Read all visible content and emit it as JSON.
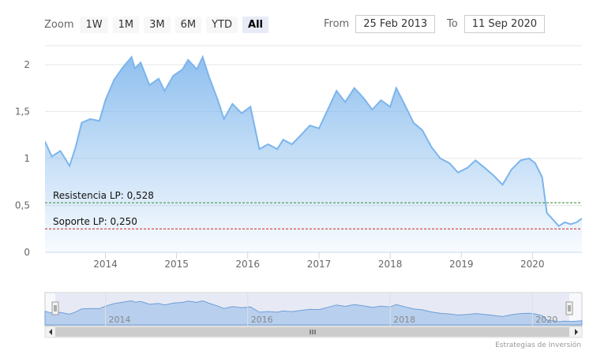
{
  "toolbar": {
    "zoom_label": "Zoom",
    "zoom_buttons": [
      "1W",
      "1M",
      "3M",
      "6M",
      "YTD",
      "All"
    ],
    "active_zoom": "All",
    "from_label": "From",
    "from_value": "25 Feb 2013",
    "to_label": "To",
    "to_value": "11 Sep 2020"
  },
  "credit": "Estrategias de Inversión",
  "colors": {
    "line": "#7cb5ec",
    "resistance": "#2e8b2e",
    "support": "#cc2222",
    "navigator_bg": "#e1e6f2"
  },
  "chart_data": {
    "type": "area",
    "x": [
      "2013-02-25",
      "2013-04-01",
      "2013-05-15",
      "2013-07-01",
      "2013-08-01",
      "2013-09-01",
      "2013-10-15",
      "2013-12-01",
      "2014-01-01",
      "2014-02-15",
      "2014-04-01",
      "2014-05-15",
      "2014-06-01",
      "2014-07-01",
      "2014-08-15",
      "2014-10-01",
      "2014-11-01",
      "2014-12-15",
      "2015-02-01",
      "2015-03-01",
      "2015-04-15",
      "2015-05-15",
      "2015-06-15",
      "2015-08-01",
      "2015-09-01",
      "2015-10-15",
      "2015-12-01",
      "2016-01-15",
      "2016-03-01",
      "2016-04-15",
      "2016-06-01",
      "2016-07-01",
      "2016-08-15",
      "2016-10-01",
      "2016-11-15",
      "2017-01-01",
      "2017-02-15",
      "2017-04-01",
      "2017-05-15",
      "2017-07-01",
      "2017-08-15",
      "2017-10-01",
      "2017-11-15",
      "2018-01-01",
      "2018-02-01",
      "2018-03-15",
      "2018-05-01",
      "2018-06-15",
      "2018-08-01",
      "2018-09-15",
      "2018-11-01",
      "2018-12-15",
      "2019-02-01",
      "2019-03-15",
      "2019-05-01",
      "2019-06-15",
      "2019-08-01",
      "2019-09-15",
      "2019-11-01",
      "2019-12-15",
      "2020-01-15",
      "2020-02-20",
      "2020-03-15",
      "2020-04-15",
      "2020-05-15",
      "2020-06-15",
      "2020-07-15",
      "2020-08-15",
      "2020-09-11"
    ],
    "y": [
      1.18,
      1.02,
      1.08,
      0.92,
      1.12,
      1.38,
      1.42,
      1.4,
      1.62,
      1.84,
      1.97,
      2.08,
      1.96,
      2.02,
      1.78,
      1.85,
      1.72,
      1.88,
      1.95,
      2.05,
      1.95,
      2.08,
      1.88,
      1.62,
      1.42,
      1.58,
      1.48,
      1.55,
      1.1,
      1.15,
      1.1,
      1.2,
      1.15,
      1.25,
      1.35,
      1.32,
      1.52,
      1.72,
      1.6,
      1.75,
      1.65,
      1.52,
      1.62,
      1.55,
      1.75,
      1.58,
      1.38,
      1.3,
      1.12,
      1.0,
      0.95,
      0.85,
      0.9,
      0.98,
      0.9,
      0.82,
      0.72,
      0.88,
      0.98,
      1.0,
      0.95,
      0.8,
      0.42,
      0.35,
      0.28,
      0.32,
      0.3,
      0.32,
      0.36
    ],
    "ylim": [
      0,
      2.2
    ],
    "yticks": [
      0,
      0.5,
      1,
      1.5,
      2
    ],
    "ytick_labels": [
      "0",
      "0,5",
      "1",
      "1,5",
      "2"
    ],
    "xticks": [
      "2014-01-01",
      "2015-01-01",
      "2016-01-01",
      "2017-01-01",
      "2018-01-01",
      "2019-01-01",
      "2020-01-01"
    ],
    "xtick_labels": [
      "2014",
      "2015",
      "2016",
      "2017",
      "2018",
      "2019",
      "2020"
    ],
    "navigator_ticks": [
      "2014-01-01",
      "2016-01-01",
      "2018-01-01",
      "2020-01-01"
    ],
    "navigator_tick_labels": [
      "2014",
      "2016",
      "2018",
      "2020"
    ],
    "annotations": [
      {
        "label": "Resistencia LP: 0,528",
        "value": 0.528
      },
      {
        "label": "Soporte LP: 0,250",
        "value": 0.25
      }
    ],
    "grid": true
  }
}
